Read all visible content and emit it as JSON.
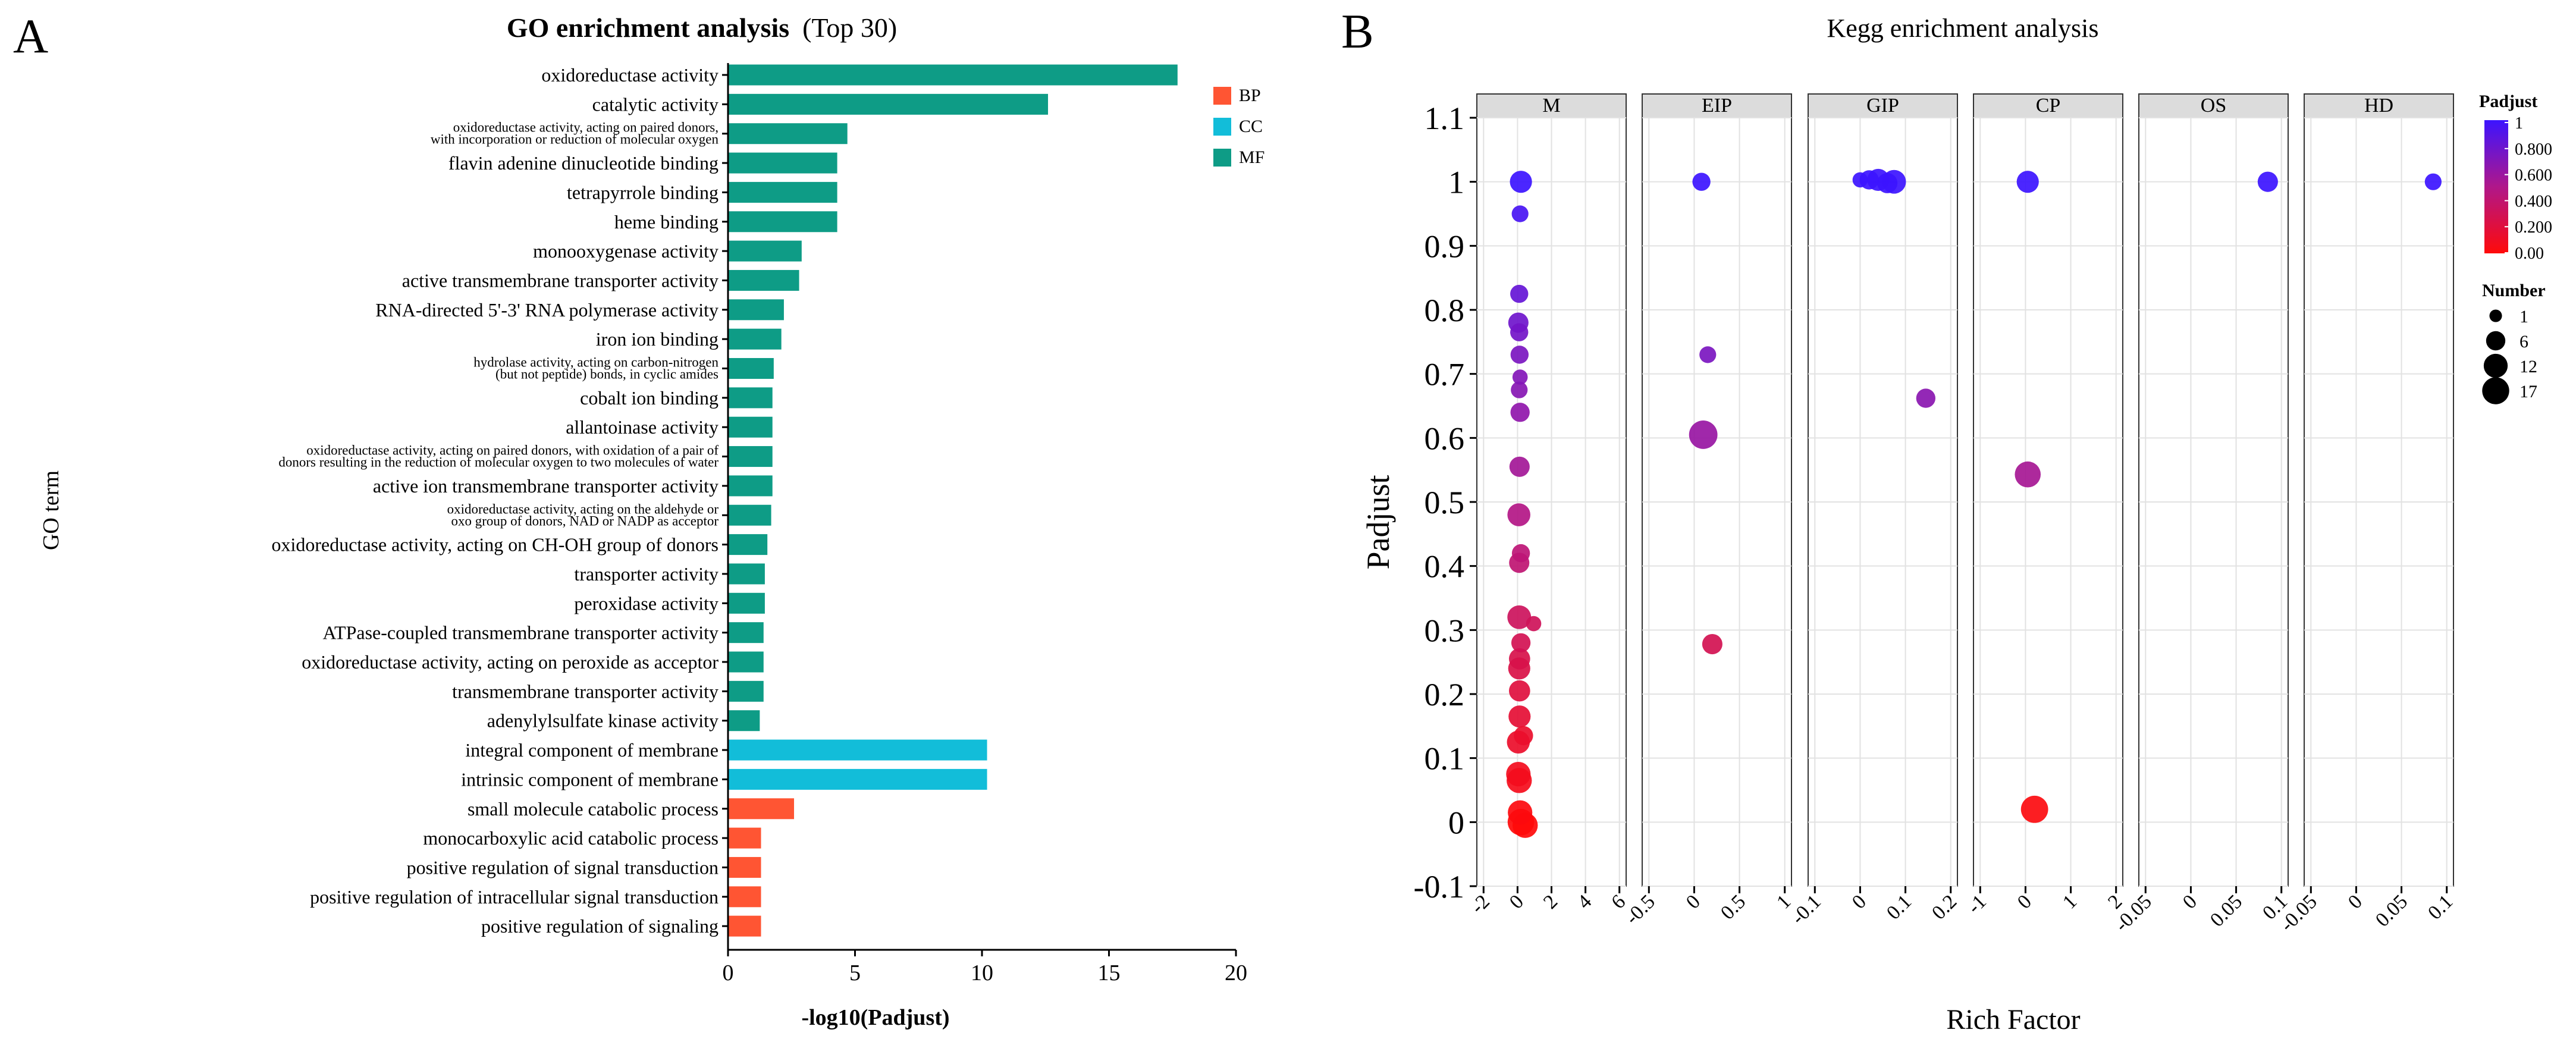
{
  "panel_a": {
    "letter": "A",
    "chart_data": {
      "type": "bar",
      "orientation": "horizontal",
      "title": "GO enrichment analysis",
      "subtitle": "(Top 30)",
      "xlabel": "-log10(Padjust)",
      "ylabel": "GO term",
      "xlim": [
        0,
        20
      ],
      "xticks": [
        "0",
        "5",
        "10",
        "15",
        "20"
      ],
      "legend_position": "top-right",
      "legend": [
        {
          "label": "BP",
          "color": "#FF5533"
        },
        {
          "label": "CC",
          "color": "#12BDD9"
        },
        {
          "label": "MF",
          "color": "#0E9C86"
        }
      ],
      "bars": [
        {
          "term": [
            "oxidoreductase activity"
          ],
          "value": 17.7,
          "group": "MF"
        },
        {
          "term": [
            "catalytic activity"
          ],
          "value": 12.6,
          "group": "MF"
        },
        {
          "term": [
            "oxidoreductase activity, acting on paired donors,",
            "with incorporation or reduction of molecular oxygen"
          ],
          "value": 4.7,
          "group": "MF"
        },
        {
          "term": [
            "flavin adenine dinucleotide binding"
          ],
          "value": 4.3,
          "group": "MF"
        },
        {
          "term": [
            "tetrapyrrole binding"
          ],
          "value": 4.3,
          "group": "MF"
        },
        {
          "term": [
            "heme binding"
          ],
          "value": 4.3,
          "group": "MF"
        },
        {
          "term": [
            "monooxygenase activity"
          ],
          "value": 2.9,
          "group": "MF"
        },
        {
          "term": [
            "active transmembrane transporter activity"
          ],
          "value": 2.8,
          "group": "MF"
        },
        {
          "term": [
            "RNA-directed 5'-3' RNA polymerase activity"
          ],
          "value": 2.2,
          "group": "MF"
        },
        {
          "term": [
            "iron ion binding"
          ],
          "value": 2.1,
          "group": "MF"
        },
        {
          "term": [
            "hydrolase activity, acting on carbon-nitrogen",
            "(but not peptide) bonds, in cyclic amides"
          ],
          "value": 1.8,
          "group": "MF"
        },
        {
          "term": [
            "cobalt ion binding"
          ],
          "value": 1.75,
          "group": "MF"
        },
        {
          "term": [
            "allantoinase activity"
          ],
          "value": 1.75,
          "group": "MF"
        },
        {
          "term": [
            "oxidoreductase activity, acting on paired donors, with oxidation of a pair of",
            "donors resulting in the reduction of molecular oxygen to two molecules of water"
          ],
          "value": 1.75,
          "group": "MF"
        },
        {
          "term": [
            "active ion transmembrane transporter activity"
          ],
          "value": 1.75,
          "group": "MF"
        },
        {
          "term": [
            "oxidoreductase activity, acting on the aldehyde or",
            "oxo group of donors, NAD or NADP as acceptor"
          ],
          "value": 1.7,
          "group": "MF"
        },
        {
          "term": [
            "oxidoreductase activity, acting on CH-OH group of donors"
          ],
          "value": 1.55,
          "group": "MF"
        },
        {
          "term": [
            "transporter activity"
          ],
          "value": 1.45,
          "group": "MF"
        },
        {
          "term": [
            "peroxidase activity"
          ],
          "value": 1.45,
          "group": "MF"
        },
        {
          "term": [
            "ATPase-coupled transmembrane transporter activity"
          ],
          "value": 1.4,
          "group": "MF"
        },
        {
          "term": [
            "oxidoreductase activity, acting on peroxide as acceptor"
          ],
          "value": 1.4,
          "group": "MF"
        },
        {
          "term": [
            "transmembrane transporter activity"
          ],
          "value": 1.4,
          "group": "MF"
        },
        {
          "term": [
            "adenylylsulfate kinase activity"
          ],
          "value": 1.25,
          "group": "MF"
        },
        {
          "term": [
            "integral component of membrane"
          ],
          "value": 10.2,
          "group": "CC"
        },
        {
          "term": [
            "intrinsic component of membrane"
          ],
          "value": 10.2,
          "group": "CC"
        },
        {
          "term": [
            "small molecule catabolic process"
          ],
          "value": 2.6,
          "group": "BP"
        },
        {
          "term": [
            "monocarboxylic acid catabolic process"
          ],
          "value": 1.3,
          "group": "BP"
        },
        {
          "term": [
            "positive regulation of signal transduction"
          ],
          "value": 1.3,
          "group": "BP"
        },
        {
          "term": [
            "positive regulation of intracellular signal transduction"
          ],
          "value": 1.3,
          "group": "BP"
        },
        {
          "term": [
            "positive regulation of signaling"
          ],
          "value": 1.3,
          "group": "BP"
        }
      ]
    }
  },
  "panel_b": {
    "letter": "B",
    "chart_data": {
      "type": "scatter",
      "title": "Kegg enrichment analysis",
      "xlabel": "Rich Factor",
      "ylabel": "Padjust",
      "ylim": [
        -0.1,
        1.1
      ],
      "yticks": [
        "-0.1",
        "0",
        "0.1",
        "0.2",
        "0.3",
        "0.4",
        "0.5",
        "0.6",
        "0.7",
        "0.8",
        "0.9",
        "1",
        "1.1"
      ],
      "grid": true,
      "color_legend": {
        "title": "Padjust",
        "low_color": "#FF0A0A",
        "mid_color": "#B0178A",
        "high_color": "#3C14FF",
        "labels": [
          "1",
          "0.800",
          "0.600",
          "0.400",
          "0.200",
          "0.00"
        ]
      },
      "size_legend": {
        "title": "Number",
        "entries": [
          {
            "label": "1",
            "value": 1
          },
          {
            "label": "6",
            "value": 6
          },
          {
            "label": "12",
            "value": 12
          },
          {
            "label": "17",
            "value": 17
          }
        ]
      },
      "facets": [
        {
          "name": "M",
          "xlim": [
            -2,
            6
          ],
          "xticks": [
            "-2",
            "0",
            "2",
            "4",
            "6"
          ],
          "points": [
            {
              "x": 0.2,
              "y": 1.0,
              "n": 8
            },
            {
              "x": 0.15,
              "y": 0.95,
              "n": 3
            },
            {
              "x": 0.1,
              "y": 0.825,
              "n": 4
            },
            {
              "x": 0.05,
              "y": 0.78,
              "n": 6
            },
            {
              "x": 0.1,
              "y": 0.765,
              "n": 4
            },
            {
              "x": 0.12,
              "y": 0.73,
              "n": 4
            },
            {
              "x": 0.15,
              "y": 0.695,
              "n": 2
            },
            {
              "x": 0.1,
              "y": 0.675,
              "n": 3
            },
            {
              "x": 0.15,
              "y": 0.64,
              "n": 5
            },
            {
              "x": 0.12,
              "y": 0.555,
              "n": 6
            },
            {
              "x": 0.08,
              "y": 0.48,
              "n": 9
            },
            {
              "x": 0.2,
              "y": 0.42,
              "n": 4
            },
            {
              "x": 0.1,
              "y": 0.405,
              "n": 6
            },
            {
              "x": 0.1,
              "y": 0.32,
              "n": 10
            },
            {
              "x": 0.95,
              "y": 0.31,
              "n": 2
            },
            {
              "x": 0.2,
              "y": 0.28,
              "n": 5
            },
            {
              "x": 0.12,
              "y": 0.255,
              "n": 7
            },
            {
              "x": 0.1,
              "y": 0.24,
              "n": 8
            },
            {
              "x": 0.12,
              "y": 0.205,
              "n": 7
            },
            {
              "x": 0.12,
              "y": 0.165,
              "n": 8
            },
            {
              "x": 0.35,
              "y": 0.135,
              "n": 5
            },
            {
              "x": 0.05,
              "y": 0.125,
              "n": 9
            },
            {
              "x": 0.05,
              "y": 0.075,
              "n": 11
            },
            {
              "x": 0.1,
              "y": 0.065,
              "n": 12
            },
            {
              "x": 0.15,
              "y": 0.015,
              "n": 11
            },
            {
              "x": 0.2,
              "y": 0.0,
              "n": 14
            },
            {
              "x": 0.45,
              "y": -0.005,
              "n": 12
            }
          ]
        },
        {
          "name": "EIP",
          "xlim": [
            -0.5,
            1
          ],
          "xticks": [
            "-0.5",
            "0",
            "0.5",
            "1"
          ],
          "points": [
            {
              "x": 0.08,
              "y": 1.0,
              "n": 4
            },
            {
              "x": 0.15,
              "y": 0.73,
              "n": 3
            },
            {
              "x": 0.1,
              "y": 0.605,
              "n": 17
            },
            {
              "x": 0.2,
              "y": 0.278,
              "n": 6
            }
          ]
        },
        {
          "name": "GIP",
          "xlim": [
            -0.1,
            0.2
          ],
          "xticks": [
            "-0.1",
            "0",
            "0.1",
            "0.2"
          ],
          "points": [
            {
              "x": 0.0,
              "y": 1.003,
              "n": 2
            },
            {
              "x": 0.02,
              "y": 1.003,
              "n": 5
            },
            {
              "x": 0.04,
              "y": 1.003,
              "n": 8
            },
            {
              "x": 0.06,
              "y": 0.998,
              "n": 6
            },
            {
              "x": 0.075,
              "y": 1.0,
              "n": 10
            },
            {
              "x": 0.145,
              "y": 0.662,
              "n": 5
            }
          ]
        },
        {
          "name": "CP",
          "xlim": [
            -1,
            2
          ],
          "xticks": [
            "-1",
            "0",
            "1",
            "2"
          ],
          "points": [
            {
              "x": 0.05,
              "y": 1.0,
              "n": 8
            },
            {
              "x": 0.05,
              "y": 0.543,
              "n": 13
            },
            {
              "x": 0.2,
              "y": 0.02,
              "n": 15
            }
          ]
        },
        {
          "name": "OS",
          "xlim": [
            -0.05,
            0.1
          ],
          "xticks": [
            "-0.05",
            "0",
            "0.05",
            "0.1"
          ],
          "points": [
            {
              "x": 0.085,
              "y": 1.0,
              "n": 6
            }
          ]
        },
        {
          "name": "HD",
          "xlim": [
            -0.05,
            0.1
          ],
          "xticks": [
            "-0.05",
            "0",
            "0.05",
            "0.1"
          ],
          "points": [
            {
              "x": 0.085,
              "y": 1.0,
              "n": 3
            }
          ]
        }
      ]
    }
  }
}
